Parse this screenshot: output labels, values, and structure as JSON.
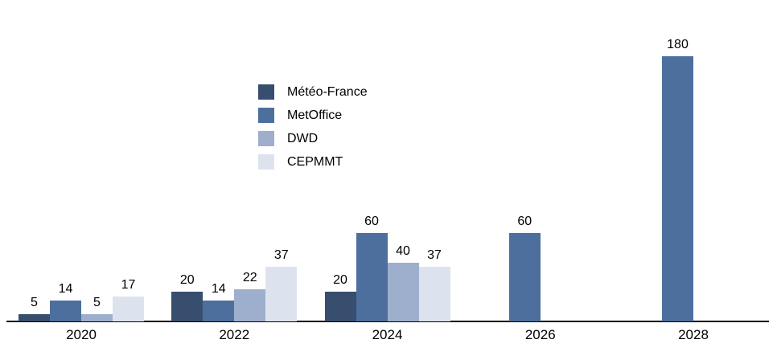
{
  "chart_data": {
    "type": "bar",
    "title": "",
    "xlabel": "",
    "ylabel": "",
    "categories": [
      "2020",
      "2022",
      "2024",
      "2026",
      "2028"
    ],
    "series": [
      {
        "name": "Météo-France",
        "color": "#384E6E",
        "values": [
          5,
          20,
          20,
          null,
          null
        ]
      },
      {
        "name": "MetOffice",
        "color": "#4C6F9E",
        "values": [
          14,
          14,
          60,
          60,
          180
        ]
      },
      {
        "name": "DWD",
        "color": "#9EAFCE",
        "values": [
          5,
          22,
          40,
          null,
          null
        ]
      },
      {
        "name": "CEPMMT",
        "color": "#DDE3EE",
        "values": [
          17,
          37,
          37,
          null,
          null
        ]
      }
    ],
    "ylim": [
      0,
      196
    ],
    "grid": false,
    "data_labels": true,
    "legend_position": "inset-upper-left",
    "axis_line_color": "#000000",
    "text_color": "#000000",
    "background_color": "#ffffff"
  }
}
